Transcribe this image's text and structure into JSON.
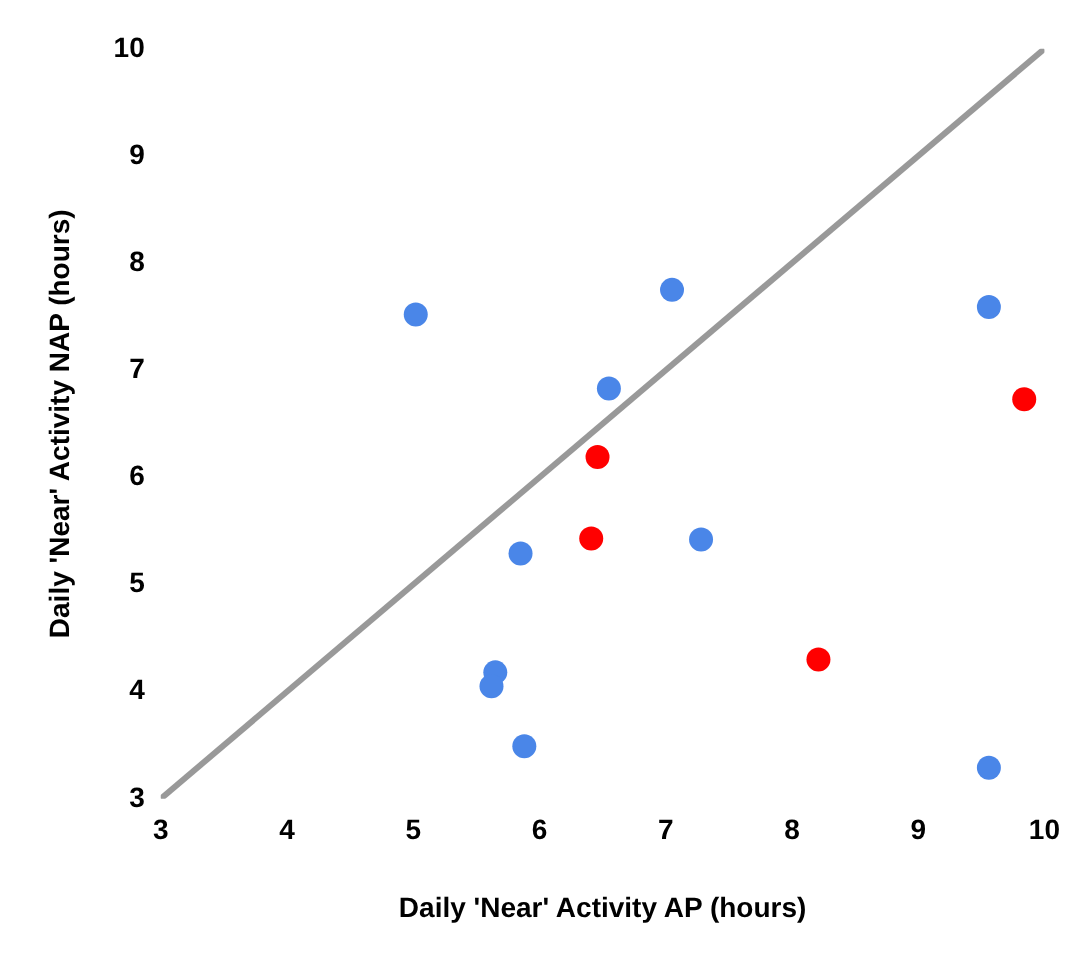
{
  "chart_data": {
    "type": "scatter",
    "xlabel": "Daily 'Near' Activity AP (hours)",
    "ylabel": "Daily 'Near' Activity NAP (hours)",
    "xlim": [
      3,
      10
    ],
    "ylim": [
      3,
      10
    ],
    "xticks": [
      3,
      4,
      5,
      6,
      7,
      8,
      9,
      10
    ],
    "yticks": [
      3,
      4,
      5,
      6,
      7,
      8,
      9,
      10
    ],
    "grid": false,
    "legend": false,
    "marker": "circle",
    "series": [
      {
        "type": "line",
        "color": "#999999",
        "x": [
          3,
          10
        ],
        "values": [
          3,
          10
        ],
        "marker": "none"
      },
      {
        "color": "#4a86e8",
        "x": [
          5.02,
          7.05,
          9.56,
          6.55,
          5.85,
          7.28,
          5.65,
          5.62,
          5.88,
          9.56
        ],
        "values": [
          7.52,
          7.75,
          7.59,
          6.83,
          5.29,
          5.42,
          4.18,
          4.05,
          3.49,
          3.29
        ]
      },
      {
        "color": "#ff0000",
        "x": [
          6.46,
          9.84,
          6.41,
          8.21
        ],
        "values": [
          6.19,
          6.73,
          5.43,
          4.3
        ]
      }
    ]
  }
}
